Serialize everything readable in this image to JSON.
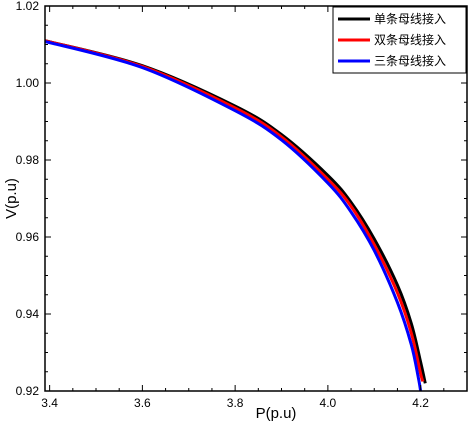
{
  "chart_data": {
    "type": "line",
    "xlabel": "P(p.u)",
    "ylabel": "V(p.u)",
    "xlim": [
      3.39,
      4.3
    ],
    "ylim": [
      0.92,
      1.02
    ],
    "x_ticks": [
      3.4,
      3.6,
      3.8,
      4.0,
      4.2
    ],
    "x_tick_labels": [
      "3.4",
      "3.6",
      "3.8",
      "4.0",
      "4.2"
    ],
    "y_ticks": [
      0.92,
      0.94,
      0.96,
      0.98,
      1.0,
      1.02
    ],
    "y_tick_labels": [
      "0.92",
      "0.94",
      "0.96",
      "0.98",
      "1.00",
      "1.02"
    ],
    "grid": false,
    "legend_position": "top-right",
    "series": [
      {
        "name": "单条母线接入",
        "color": "#000000",
        "points": [
          [
            3.39,
            1.011
          ],
          [
            3.6,
            1.0045
          ],
          [
            3.8,
            0.994
          ],
          [
            3.9,
            0.9866
          ],
          [
            4.0,
            0.976
          ],
          [
            4.05,
            0.969
          ],
          [
            4.1,
            0.9595
          ],
          [
            4.15,
            0.9475
          ],
          [
            4.18,
            0.9375
          ],
          [
            4.2,
            0.9275
          ],
          [
            4.21,
            0.922
          ]
        ]
      },
      {
        "name": "双条母线接入",
        "color": "#ff0000",
        "points": [
          [
            3.39,
            1.011
          ],
          [
            3.6,
            1.0043
          ],
          [
            3.8,
            0.9935
          ],
          [
            3.9,
            0.986
          ],
          [
            4.0,
            0.975
          ],
          [
            4.05,
            0.968
          ],
          [
            4.1,
            0.958
          ],
          [
            4.15,
            0.9455
          ],
          [
            4.18,
            0.935
          ],
          [
            4.2,
            0.9245
          ],
          [
            4.205,
            0.9225
          ]
        ]
      },
      {
        "name": "三条母线接入",
        "color": "#0000ff",
        "points": [
          [
            3.39,
            1.0108
          ],
          [
            3.6,
            1.004
          ],
          [
            3.8,
            0.9928
          ],
          [
            3.9,
            0.9852
          ],
          [
            4.0,
            0.974
          ],
          [
            4.05,
            0.9665
          ],
          [
            4.1,
            0.9565
          ],
          [
            4.15,
            0.943
          ],
          [
            4.18,
            0.932
          ],
          [
            4.195,
            0.9235
          ],
          [
            4.2,
            0.92
          ]
        ]
      }
    ]
  }
}
